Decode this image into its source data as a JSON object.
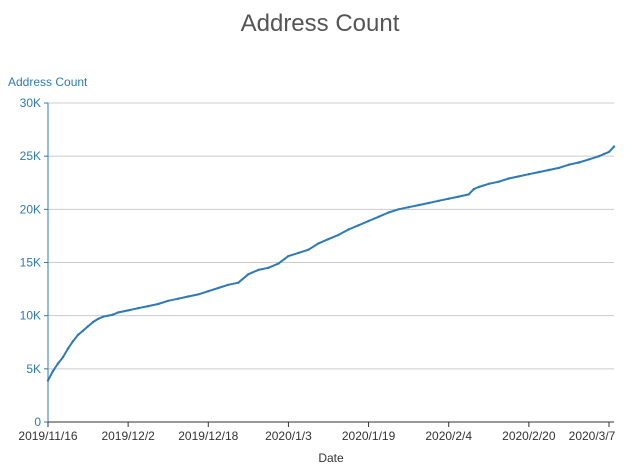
{
  "chart_data": {
    "type": "line",
    "title": "Address Count",
    "xlabel": "Date",
    "ylabel": "Address Count",
    "x_ticks": [
      "2019/11/16",
      "2019/12/2",
      "2019/12/18",
      "2020/1/3",
      "2020/1/19",
      "2020/2/4",
      "2020/2/20",
      "2020/3/7"
    ],
    "y_ticks": [
      "0",
      "5K",
      "10K",
      "15K",
      "20K",
      "25K",
      "30K"
    ],
    "ylim": [
      0,
      30000
    ],
    "xlim": [
      "2019-11-16",
      "2020-03-08"
    ],
    "grid": true,
    "line_color": "#2f7ab5",
    "series": [
      {
        "x": [
          "2019-11-16",
          "2019-11-17",
          "2019-11-18",
          "2019-11-19",
          "2019-11-20",
          "2019-11-21",
          "2019-11-22",
          "2019-11-23",
          "2019-11-24",
          "2019-11-25",
          "2019-11-26",
          "2019-11-27",
          "2019-11-28",
          "2019-11-29",
          "2019-11-30",
          "2019-12-02",
          "2019-12-04",
          "2019-12-06",
          "2019-12-08",
          "2019-12-10",
          "2019-12-12",
          "2019-12-14",
          "2019-12-16",
          "2019-12-18",
          "2019-12-20",
          "2019-12-22",
          "2019-12-24",
          "2019-12-26",
          "2019-12-28",
          "2019-12-30",
          "2020-01-01",
          "2020-01-03",
          "2020-01-05",
          "2020-01-07",
          "2020-01-09",
          "2020-01-11",
          "2020-01-13",
          "2020-01-15",
          "2020-01-17",
          "2020-01-19",
          "2020-01-21",
          "2020-01-23",
          "2020-01-25",
          "2020-01-27",
          "2020-01-29",
          "2020-01-31",
          "2020-02-02",
          "2020-02-04",
          "2020-02-06",
          "2020-02-08",
          "2020-02-09",
          "2020-02-10",
          "2020-02-12",
          "2020-02-14",
          "2020-02-16",
          "2020-02-18",
          "2020-02-20",
          "2020-02-22",
          "2020-02-24",
          "2020-02-26",
          "2020-02-28",
          "2020-03-01",
          "2020-03-03",
          "2020-03-05",
          "2020-03-06",
          "2020-03-07",
          "2020-03-08"
        ],
        "y": [
          3900,
          4800,
          5500,
          6100,
          6900,
          7600,
          8200,
          8600,
          9000,
          9400,
          9700,
          9900,
          10000,
          10100,
          10300,
          10500,
          10700,
          10900,
          11100,
          11400,
          11600,
          11800,
          12000,
          12300,
          12600,
          12900,
          13100,
          13900,
          14300,
          14500,
          14900,
          15600,
          15900,
          16200,
          16800,
          17200,
          17600,
          18100,
          18500,
          18900,
          19300,
          19700,
          20000,
          20200,
          20400,
          20600,
          20800,
          21000,
          21200,
          21400,
          21900,
          22100,
          22400,
          22600,
          22900,
          23100,
          23300,
          23500,
          23700,
          23900,
          24200,
          24400,
          24700,
          25000,
          25200,
          25400,
          25900
        ]
      }
    ]
  }
}
